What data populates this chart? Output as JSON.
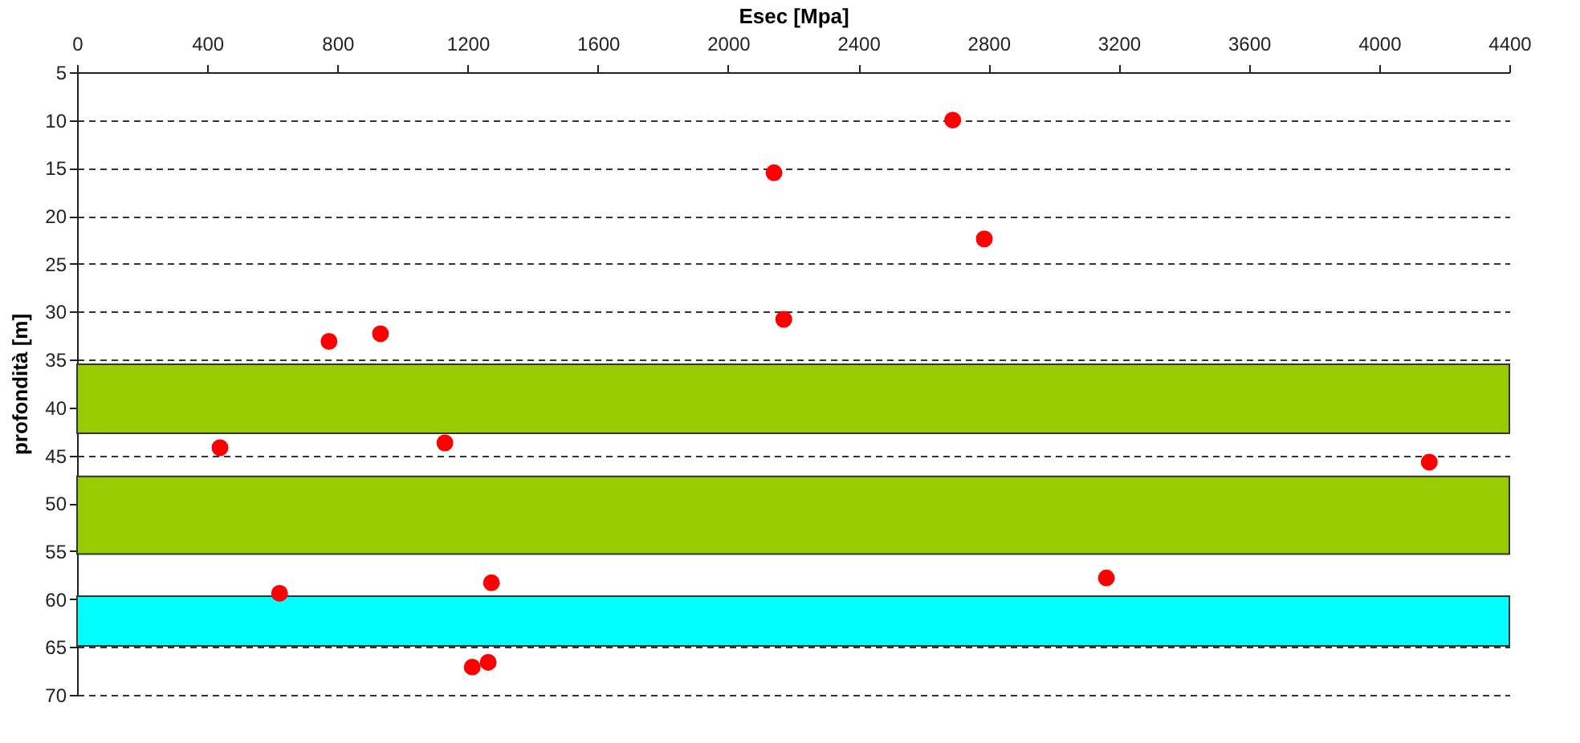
{
  "chart_data": {
    "type": "scatter",
    "xlabel": "Esec  [Mpa]",
    "ylabel": "profondità  [m]",
    "x": [
      2690,
      2141,
      2787,
      2171,
      774,
      932,
      439,
      1130,
      4154,
      622,
      1273,
      1214,
      1263,
      3162
    ],
    "series": [
      {
        "color": "#ff0000",
        "values": [
          10,
          15.5,
          22.4,
          30.8,
          33.1,
          32.3,
          44.2,
          43.7,
          45.7,
          59.4,
          58.3,
          67.1,
          66.6,
          57.8
        ]
      }
    ],
    "xlim": [
      0,
      4400
    ],
    "xticks": [
      0,
      400,
      800,
      1200,
      1600,
      2000,
      2400,
      2800,
      3200,
      3600,
      4000,
      4400
    ],
    "ylim": [
      70,
      5
    ],
    "yticks": [
      5,
      10,
      15,
      20,
      25,
      30,
      35,
      40,
      45,
      50,
      55,
      60,
      65,
      70
    ],
    "bands": [
      {
        "axis": "y",
        "from": 35.5,
        "to": 42.7,
        "color": "#99cc00"
      },
      {
        "axis": "y",
        "from": 47.2,
        "to": 55.3,
        "color": "#99cc00"
      },
      {
        "axis": "y",
        "from": 59.7,
        "to": 64.9,
        "color": "#00ffff"
      }
    ],
    "grid": "y",
    "marker": "circle",
    "legend": false
  }
}
